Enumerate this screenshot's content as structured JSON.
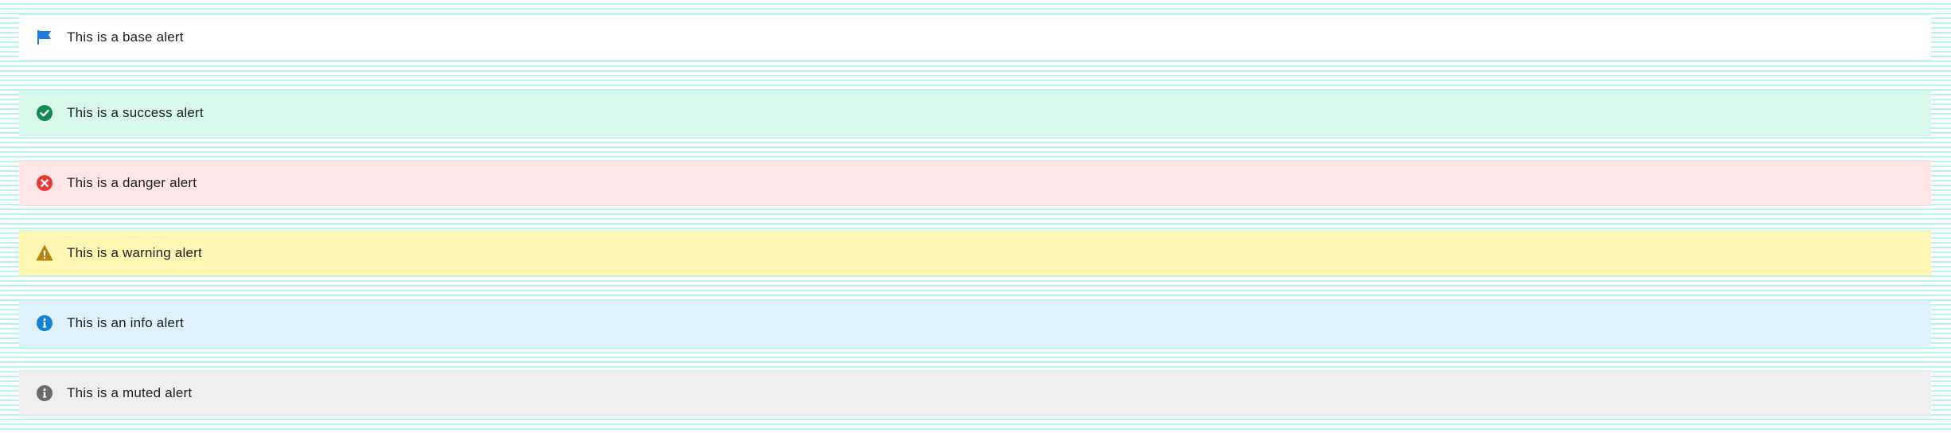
{
  "alerts": [
    {
      "id": "base",
      "text": "This is a base alert",
      "icon": "flag-icon",
      "background": "#ffffff",
      "icon_color": "#1f7ae0"
    },
    {
      "id": "success",
      "text": "This is a success alert",
      "icon": "check-circle-icon",
      "background": "#d7f8ea",
      "icon_color": "#108a52"
    },
    {
      "id": "danger",
      "text": "This is a danger alert",
      "icon": "x-circle-icon",
      "background": "#ffe5e5",
      "icon_color": "#e13c37"
    },
    {
      "id": "warning",
      "text": "This is a warning alert",
      "icon": "warning-triangle-icon",
      "background": "#fff7b3",
      "icon_color": "#b7840d"
    },
    {
      "id": "info",
      "text": "This is an info alert",
      "icon": "info-circle-icon",
      "background": "#def1fc",
      "icon_color": "#1482d4"
    },
    {
      "id": "muted",
      "text": "This is a muted alert",
      "icon": "info-circle-icon",
      "background": "#f0efef",
      "icon_color": "#6b6b6b"
    }
  ]
}
